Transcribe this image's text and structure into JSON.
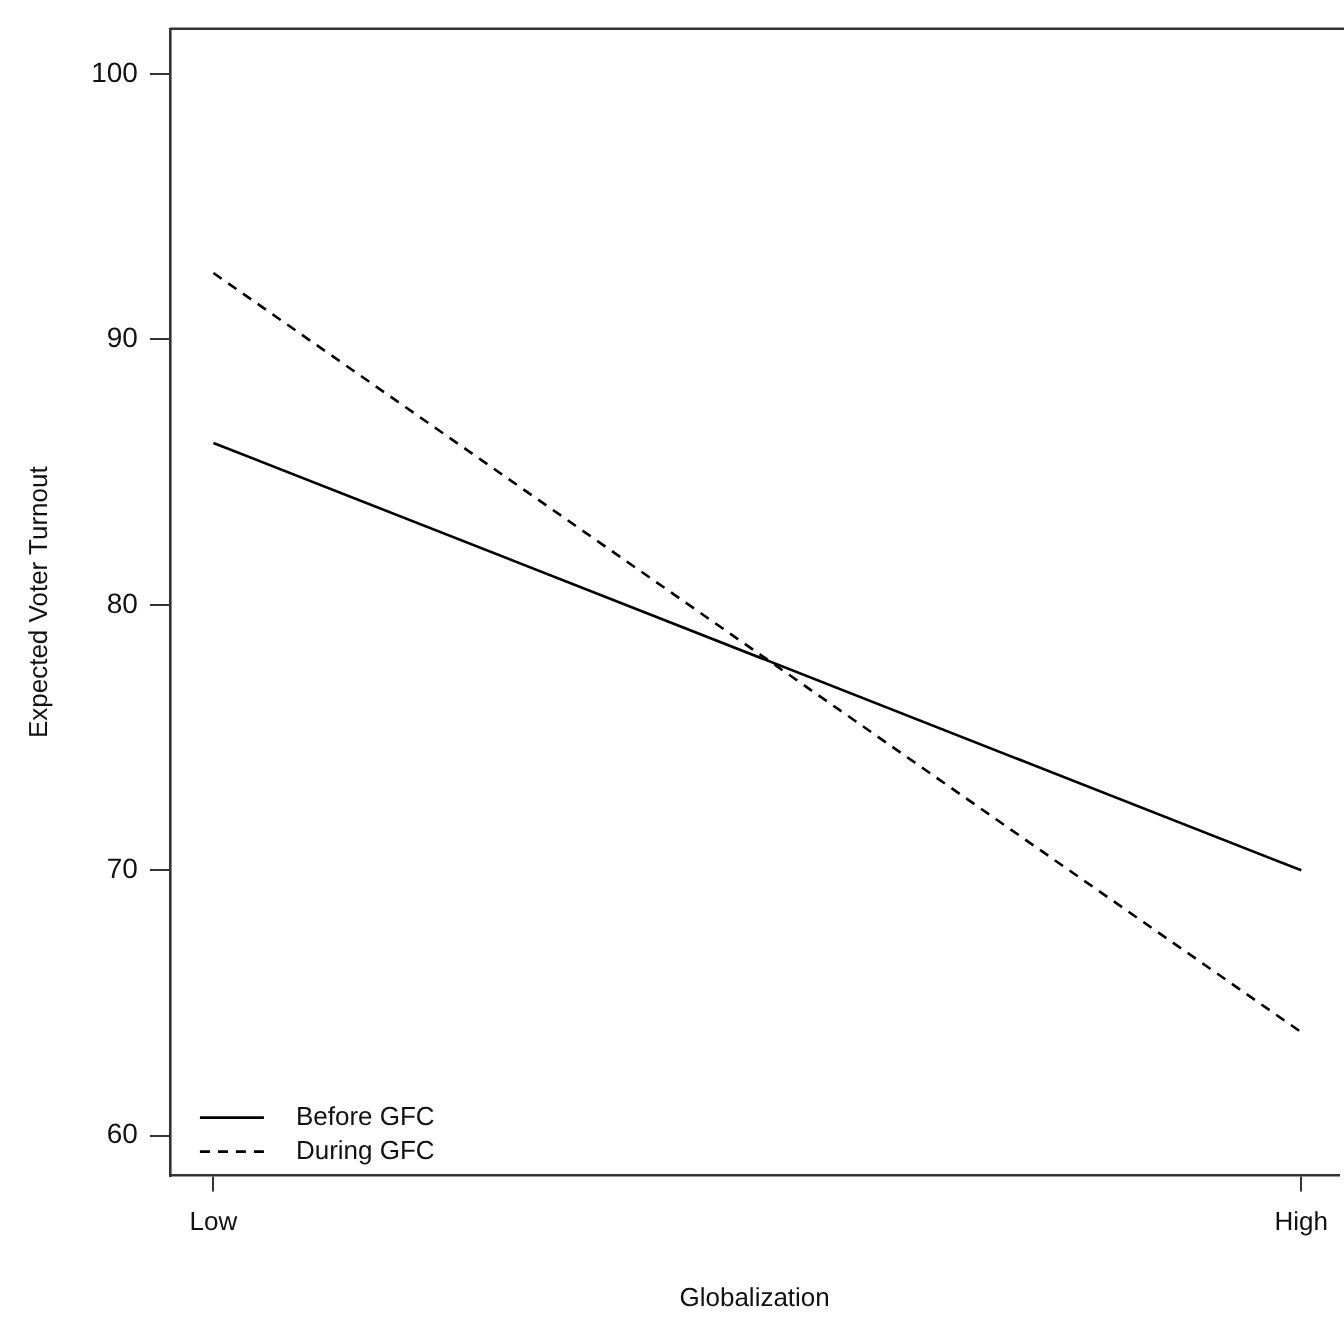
{
  "chart_data": {
    "type": "line",
    "xlabel": "Globalization",
    "ylabel": "Expected Voter Turnout",
    "categories": [
      "Low",
      "High"
    ],
    "ylim": [
      58.5,
      101.7
    ],
    "yticks": [
      60,
      70,
      80,
      90,
      100
    ],
    "series": [
      {
        "name": "Before GFC",
        "color": "#000000",
        "values": [
          86.1,
          70.0
        ],
        "line_style": "solid"
      },
      {
        "name": "During GFC",
        "color": "#000000",
        "values": [
          92.5,
          63.9
        ],
        "line_style": "dashed"
      }
    ],
    "grid": false,
    "legend": "bottom left",
    "marker": "none"
  }
}
